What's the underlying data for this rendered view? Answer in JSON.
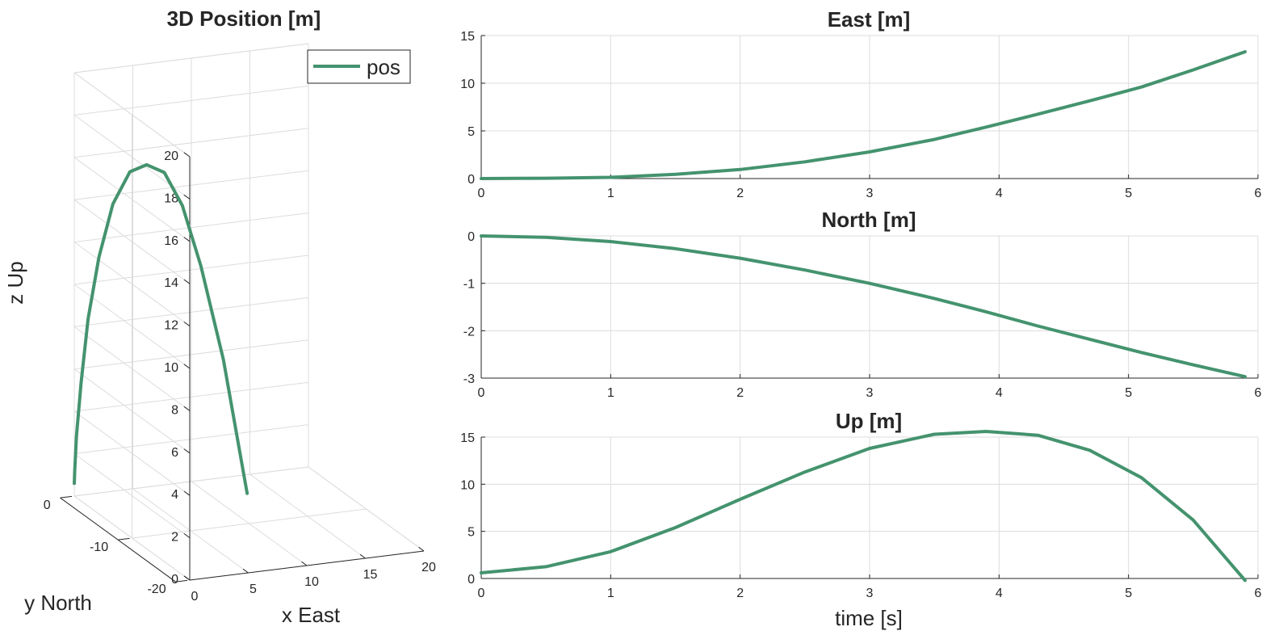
{
  "chart_data": [
    {
      "id": "pos3d",
      "type": "line3d",
      "title": "3D Position [m]",
      "xlabel": "x East",
      "ylabel": "y North",
      "zlabel": "z Up",
      "xlim": [
        0,
        20
      ],
      "ylim": [
        -20,
        0
      ],
      "zlim": [
        0,
        20
      ],
      "xticks": [
        "0",
        "5",
        "10",
        "15",
        "20"
      ],
      "yticks": [
        "0",
        "-10",
        "-20"
      ],
      "zticks": [
        "0",
        "2",
        "4",
        "6",
        "8",
        "10",
        "12",
        "14",
        "16",
        "18",
        "20"
      ],
      "legend": {
        "entries": [
          "pos"
        ],
        "location": "top-right"
      },
      "grid": true,
      "series": [
        {
          "name": "pos",
          "color": "#44936e",
          "t": [
            0,
            0.5,
            1,
            1.5,
            2,
            2.5,
            3,
            3.5,
            3.9,
            4.3,
            4.7,
            5.1,
            5.5,
            5.9
          ],
          "x": [
            0,
            0.03,
            0.13,
            0.45,
            0.95,
            1.75,
            2.8,
            4.1,
            5.4,
            6.75,
            8.15,
            9.6,
            11.4,
            13.3
          ],
          "y": [
            0,
            -0.03,
            -0.12,
            -0.27,
            -0.47,
            -0.72,
            -1.0,
            -1.32,
            -1.6,
            -1.9,
            -2.18,
            -2.46,
            -2.72,
            -2.97
          ],
          "z": [
            0.6,
            1.25,
            2.85,
            5.4,
            8.4,
            11.3,
            13.8,
            15.3,
            15.6,
            15.2,
            13.6,
            10.7,
            6.2,
            -0.2
          ]
        }
      ]
    },
    {
      "id": "east",
      "type": "line",
      "title": "East [m]",
      "xlabel": "",
      "ylabel": "",
      "xlim": [
        0,
        6
      ],
      "ylim": [
        0,
        15
      ],
      "xticks": [
        "0",
        "1",
        "2",
        "3",
        "4",
        "5",
        "6"
      ],
      "yticks": [
        "0",
        "5",
        "10",
        "15"
      ],
      "grid": true,
      "series": [
        {
          "color": "#44936e",
          "x": [
            0,
            0.5,
            1,
            1.5,
            2,
            2.5,
            3,
            3.5,
            3.9,
            4.3,
            4.7,
            5.1,
            5.5,
            5.9
          ],
          "y": [
            0,
            0.03,
            0.13,
            0.45,
            0.95,
            1.75,
            2.8,
            4.1,
            5.4,
            6.75,
            8.15,
            9.6,
            11.4,
            13.3
          ]
        }
      ]
    },
    {
      "id": "north",
      "type": "line",
      "title": "North [m]",
      "xlabel": "",
      "ylabel": "",
      "xlim": [
        0,
        6
      ],
      "ylim": [
        -3,
        0
      ],
      "xticks": [
        "0",
        "1",
        "2",
        "3",
        "4",
        "5",
        "6"
      ],
      "yticks": [
        "0",
        "-1",
        "-2",
        "-3"
      ],
      "grid": true,
      "series": [
        {
          "color": "#44936e",
          "x": [
            0,
            0.5,
            1,
            1.5,
            2,
            2.5,
            3,
            3.5,
            3.9,
            4.3,
            4.7,
            5.1,
            5.5,
            5.9
          ],
          "y": [
            0,
            -0.03,
            -0.12,
            -0.27,
            -0.47,
            -0.72,
            -1.0,
            -1.32,
            -1.6,
            -1.9,
            -2.18,
            -2.46,
            -2.72,
            -2.97
          ]
        }
      ]
    },
    {
      "id": "up",
      "type": "line",
      "title": "Up [m]",
      "xlabel": "time [s]",
      "ylabel": "",
      "xlim": [
        0,
        6
      ],
      "ylim": [
        0,
        15
      ],
      "xticks": [
        "0",
        "1",
        "2",
        "3",
        "4",
        "5",
        "6"
      ],
      "yticks": [
        "0",
        "5",
        "10",
        "15"
      ],
      "grid": true,
      "series": [
        {
          "color": "#44936e",
          "x": [
            0,
            0.5,
            1,
            1.5,
            2,
            2.5,
            3,
            3.5,
            3.9,
            4.3,
            4.7,
            5.1,
            5.5,
            5.9
          ],
          "y": [
            0.6,
            1.25,
            2.85,
            5.4,
            8.4,
            11.3,
            13.8,
            15.3,
            15.6,
            15.2,
            13.6,
            10.7,
            6.2,
            -0.2
          ]
        }
      ]
    }
  ]
}
